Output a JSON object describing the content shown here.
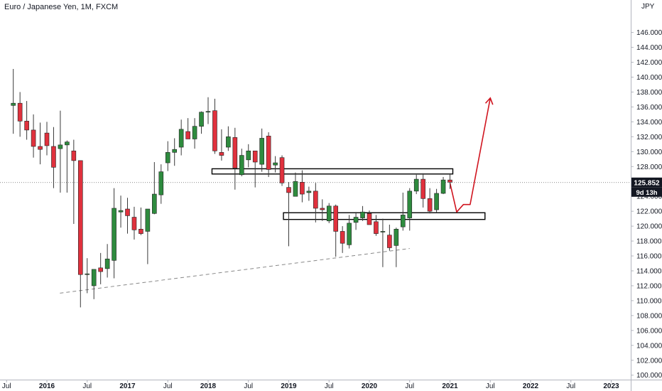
{
  "header": {
    "title": "Euro / Japanese Yen, 1M, FXCM",
    "unit": "JPY"
  },
  "price_tag": {
    "value": "125.852",
    "countdown": "9d 13h"
  },
  "colors": {
    "up": "#2e8b3e",
    "down": "#e0313d",
    "wick": "#3a3a3a",
    "annotation": "#d0141f",
    "price_tag_bg": "#131722",
    "trendline": "#888888"
  },
  "chart_data": {
    "type": "candlestick",
    "title": "Euro / Japanese Yen, 1M, FXCM",
    "ylim": [
      99.4,
      149.4
    ],
    "y_ticks": [
      "100.000",
      "102.000",
      "104.000",
      "106.000",
      "108.000",
      "110.000",
      "112.000",
      "114.000",
      "116.000",
      "118.000",
      "120.000",
      "122.000",
      "124.000",
      "126.000",
      "128.000",
      "130.000",
      "132.000",
      "134.000",
      "136.000",
      "138.000",
      "140.000",
      "142.000",
      "144.000",
      "146.000"
    ],
    "x_ticks": [
      {
        "label": "Jul",
        "t": 2015.5,
        "bold": false
      },
      {
        "label": "2016",
        "t": 2016.0,
        "bold": true
      },
      {
        "label": "Jul",
        "t": 2016.5,
        "bold": false
      },
      {
        "label": "2017",
        "t": 2017.0,
        "bold": true
      },
      {
        "label": "Jul",
        "t": 2017.5,
        "bold": false
      },
      {
        "label": "2018",
        "t": 2018.0,
        "bold": true
      },
      {
        "label": "Jul",
        "t": 2018.5,
        "bold": false
      },
      {
        "label": "2019",
        "t": 2019.0,
        "bold": true
      },
      {
        "label": "Jul",
        "t": 2019.5,
        "bold": false
      },
      {
        "label": "2020",
        "t": 2020.0,
        "bold": true
      },
      {
        "label": "Jul",
        "t": 2020.5,
        "bold": false
      },
      {
        "label": "2021",
        "t": 2021.0,
        "bold": true
      },
      {
        "label": "Jul",
        "t": 2021.5,
        "bold": false
      },
      {
        "label": "2022",
        "t": 2022.0,
        "bold": true
      },
      {
        "label": "Jul",
        "t": 2022.5,
        "bold": false
      },
      {
        "label": "2023",
        "t": 2023.0,
        "bold": true
      }
    ],
    "last_price": 125.852,
    "candles": [
      {
        "t": "2015-08",
        "o": 136.2,
        "h": 141.1,
        "l": 132.4,
        "c": 136.5
      },
      {
        "t": "2015-09",
        "o": 136.5,
        "h": 138.0,
        "l": 132.0,
        "c": 134.1
      },
      {
        "t": "2015-10",
        "o": 134.1,
        "h": 136.8,
        "l": 131.6,
        "c": 132.9
      },
      {
        "t": "2015-11",
        "o": 132.9,
        "h": 135.0,
        "l": 129.2,
        "c": 130.7
      },
      {
        "t": "2015-12",
        "o": 130.7,
        "h": 133.9,
        "l": 128.3,
        "c": 130.3
      },
      {
        "t": "2016-01",
        "o": 132.5,
        "h": 134.0,
        "l": 129.5,
        "c": 130.8
      },
      {
        "t": "2016-02",
        "o": 130.7,
        "h": 133.3,
        "l": 125.1,
        "c": 127.9
      },
      {
        "t": "2016-03",
        "o": 130.4,
        "h": 135.5,
        "l": 124.5,
        "c": 130.9
      },
      {
        "t": "2016-04",
        "o": 130.9,
        "h": 131.5,
        "l": 124.5,
        "c": 131.3
      },
      {
        "t": "2016-05",
        "o": 130.1,
        "h": 131.6,
        "l": 120.3,
        "c": 128.8
      },
      {
        "t": "2016-06",
        "o": 128.8,
        "h": 128.8,
        "l": 109.1,
        "c": 113.5
      },
      {
        "t": "2016-07",
        "o": 113.5,
        "h": 115.7,
        "l": 111.0,
        "c": 113.6
      },
      {
        "t": "2016-08",
        "o": 112.0,
        "h": 114.2,
        "l": 110.2,
        "c": 114.2
      },
      {
        "t": "2016-09",
        "o": 114.4,
        "h": 116.4,
        "l": 112.2,
        "c": 113.9
      },
      {
        "t": "2016-10",
        "o": 114.3,
        "h": 117.6,
        "l": 113.1,
        "c": 115.6
      },
      {
        "t": "2016-11",
        "o": 115.4,
        "h": 125.1,
        "l": 113.0,
        "c": 122.4
      },
      {
        "t": "2016-12",
        "o": 121.9,
        "h": 124.1,
        "l": 119.8,
        "c": 122.1
      },
      {
        "t": "2017-01",
        "o": 122.3,
        "h": 123.8,
        "l": 119.0,
        "c": 121.4
      },
      {
        "t": "2017-02",
        "o": 121.2,
        "h": 122.6,
        "l": 118.2,
        "c": 119.5
      },
      {
        "t": "2017-03",
        "o": 119.6,
        "h": 122.5,
        "l": 118.8,
        "c": 119.0
      },
      {
        "t": "2017-04",
        "o": 119.3,
        "h": 122.3,
        "l": 114.9,
        "c": 122.3
      },
      {
        "t": "2017-05",
        "o": 121.7,
        "h": 128.6,
        "l": 121.6,
        "c": 124.3
      },
      {
        "t": "2017-06",
        "o": 124.2,
        "h": 128.3,
        "l": 123.0,
        "c": 127.3
      },
      {
        "t": "2017-07",
        "o": 128.5,
        "h": 131.4,
        "l": 127.4,
        "c": 129.9
      },
      {
        "t": "2017-08",
        "o": 129.9,
        "h": 131.8,
        "l": 128.1,
        "c": 130.3
      },
      {
        "t": "2017-09",
        "o": 130.6,
        "h": 134.3,
        "l": 129.5,
        "c": 133.0
      },
      {
        "t": "2017-10",
        "o": 132.7,
        "h": 134.5,
        "l": 131.8,
        "c": 131.7
      },
      {
        "t": "2017-11",
        "o": 131.7,
        "h": 134.5,
        "l": 130.4,
        "c": 133.4
      },
      {
        "t": "2017-12",
        "o": 133.4,
        "h": 135.4,
        "l": 132.4,
        "c": 135.3
      },
      {
        "t": "2018-01",
        "o": 135.3,
        "h": 137.3,
        "l": 133.7,
        "c": 135.4
      },
      {
        "t": "2018-02",
        "o": 135.5,
        "h": 137.1,
        "l": 129.7,
        "c": 130.1
      },
      {
        "t": "2018-03",
        "o": 129.9,
        "h": 133.0,
        "l": 128.8,
        "c": 129.5
      },
      {
        "t": "2018-04",
        "o": 130.6,
        "h": 133.4,
        "l": 130.1,
        "c": 132.0
      },
      {
        "t": "2018-05",
        "o": 131.9,
        "h": 133.2,
        "l": 124.9,
        "c": 127.8
      },
      {
        "t": "2018-06",
        "o": 126.9,
        "h": 130.4,
        "l": 126.7,
        "c": 129.5
      },
      {
        "t": "2018-07",
        "o": 128.9,
        "h": 131.0,
        "l": 127.9,
        "c": 130.1
      },
      {
        "t": "2018-08",
        "o": 130.1,
        "h": 130.1,
        "l": 125.2,
        "c": 128.6
      },
      {
        "t": "2018-09",
        "o": 128.3,
        "h": 133.1,
        "l": 127.3,
        "c": 131.8
      },
      {
        "t": "2018-10",
        "o": 132.1,
        "h": 132.6,
        "l": 126.6,
        "c": 127.6
      },
      {
        "t": "2018-11",
        "o": 128.2,
        "h": 129.4,
        "l": 127.2,
        "c": 128.5
      },
      {
        "t": "2018-12",
        "o": 129.2,
        "h": 129.5,
        "l": 125.4,
        "c": 125.8
      },
      {
        "t": "2019-01",
        "o": 125.2,
        "h": 125.9,
        "l": 117.3,
        "c": 124.5
      },
      {
        "t": "2019-02",
        "o": 124.0,
        "h": 127.2,
        "l": 124.0,
        "c": 126.0
      },
      {
        "t": "2019-03",
        "o": 125.9,
        "h": 127.5,
        "l": 123.2,
        "c": 124.3
      },
      {
        "t": "2019-04",
        "o": 124.5,
        "h": 125.3,
        "l": 123.4,
        "c": 124.7
      },
      {
        "t": "2019-05",
        "o": 124.7,
        "h": 125.8,
        "l": 120.5,
        "c": 122.4
      },
      {
        "t": "2019-06",
        "o": 122.4,
        "h": 123.6,
        "l": 120.7,
        "c": 122.2
      },
      {
        "t": "2019-07",
        "o": 120.7,
        "h": 123.1,
        "l": 120.4,
        "c": 122.7
      },
      {
        "t": "2019-08",
        "o": 122.7,
        "h": 122.9,
        "l": 115.9,
        "c": 119.3
      },
      {
        "t": "2019-09",
        "o": 119.3,
        "h": 120.0,
        "l": 116.4,
        "c": 117.7
      },
      {
        "t": "2019-10",
        "o": 117.5,
        "h": 121.5,
        "l": 117.0,
        "c": 120.4
      },
      {
        "t": "2019-11",
        "o": 120.5,
        "h": 121.9,
        "l": 119.5,
        "c": 121.2
      },
      {
        "t": "2019-12",
        "o": 121.1,
        "h": 122.7,
        "l": 120.7,
        "c": 121.9
      },
      {
        "t": "2020-01",
        "o": 121.7,
        "h": 122.1,
        "l": 120.4,
        "c": 120.2
      },
      {
        "t": "2020-02",
        "o": 120.6,
        "h": 121.5,
        "l": 118.7,
        "c": 119.0
      },
      {
        "t": "2020-03",
        "o": 119.2,
        "h": 121.0,
        "l": 114.5,
        "c": 119.3
      },
      {
        "t": "2020-04",
        "o": 118.8,
        "h": 120.2,
        "l": 116.7,
        "c": 117.1
      },
      {
        "t": "2020-05",
        "o": 117.4,
        "h": 119.8,
        "l": 114.5,
        "c": 119.6
      },
      {
        "t": "2020-06",
        "o": 119.9,
        "h": 124.5,
        "l": 119.4,
        "c": 121.5
      },
      {
        "t": "2020-07",
        "o": 121.1,
        "h": 125.1,
        "l": 119.4,
        "c": 124.7
      },
      {
        "t": "2020-08",
        "o": 124.7,
        "h": 126.9,
        "l": 124.3,
        "c": 126.3
      },
      {
        "t": "2020-09",
        "o": 126.3,
        "h": 127.1,
        "l": 122.5,
        "c": 123.7
      },
      {
        "t": "2020-10",
        "o": 123.7,
        "h": 125.1,
        "l": 121.7,
        "c": 122.0
      },
      {
        "t": "2020-11",
        "o": 122.2,
        "h": 125.0,
        "l": 121.8,
        "c": 124.4
      },
      {
        "t": "2020-12",
        "o": 124.4,
        "h": 126.6,
        "l": 124.3,
        "c": 126.2
      },
      {
        "t": "2021-01",
        "o": 126.2,
        "h": 127.1,
        "l": 125.0,
        "c": 125.9
      }
    ],
    "annotations": {
      "resistance_zone": {
        "t1": "2018-02",
        "t2": "2021-01",
        "y1": 127.0,
        "y2": 127.7
      },
      "support_zone": {
        "t1": "2018-12",
        "t2": "2021-06",
        "y1": 120.9,
        "y2": 121.8
      },
      "trendline": {
        "p1": {
          "t": "2016-04",
          "y": 111.0
        },
        "p2": {
          "t": "2020-07",
          "y": 117.0
        }
      },
      "projection_path": [
        {
          "t": "2021-01",
          "y": 125.8
        },
        {
          "t": "2021-02",
          "y": 121.9
        },
        {
          "t": "2021-03",
          "y": 122.9
        },
        {
          "t": "2021-04",
          "y": 122.9
        },
        {
          "t": "2021-07",
          "y": 137.2
        }
      ]
    }
  }
}
